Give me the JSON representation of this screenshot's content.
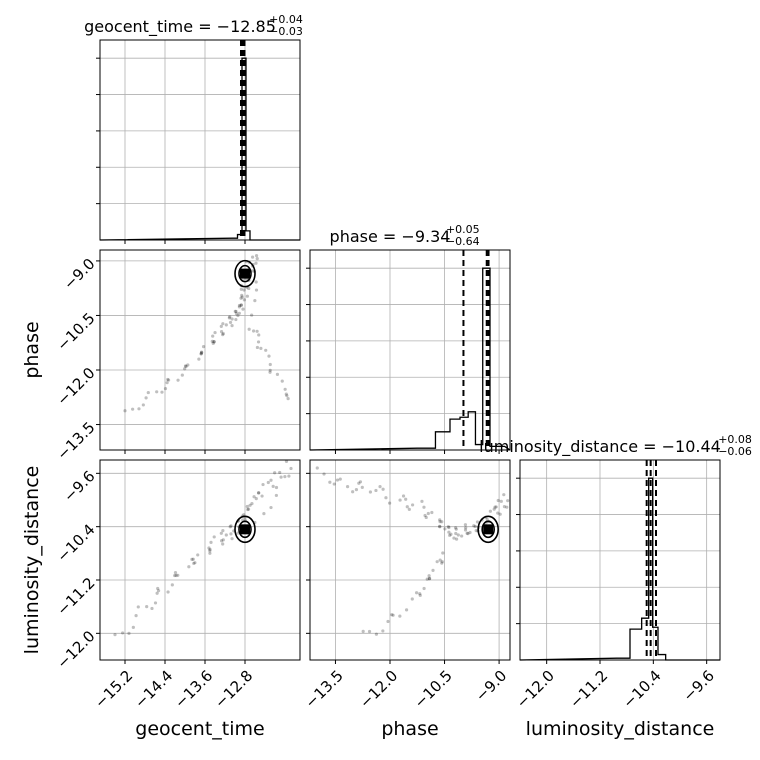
{
  "chart_data": {
    "type": "corner",
    "parameters": [
      {
        "name": "geocent_time",
        "ticks": [
          -15.2,
          -14.4,
          -13.6,
          -12.8
        ],
        "tick_labels": [
          "−15.2",
          "−14.4",
          "−13.6",
          "−12.8"
        ],
        "range": [
          -15.7,
          -11.7
        ],
        "median": -12.85,
        "lower": -12.88,
        "upper": -12.81,
        "hist_mode": -12.78
      },
      {
        "name": "phase",
        "ticks": [
          -13.5,
          -12.0,
          -10.5,
          -9.0
        ],
        "tick_labels": [
          "−13.5",
          "−12.0",
          "−10.5",
          "−9.0"
        ],
        "range": [
          -14.2,
          -8.7
        ],
        "median": -9.34,
        "lower": -9.98,
        "upper": -9.29,
        "hist_mode": -9.3
      },
      {
        "name": "luminosity_distance",
        "ticks": [
          -12.0,
          -11.2,
          -10.4,
          -9.6
        ],
        "tick_labels": [
          "−12.0",
          "−11.2",
          "−10.4",
          "−9.6"
        ],
        "range": [
          -12.4,
          -9.4
        ],
        "median": -10.44,
        "lower": -10.5,
        "upper": -10.36,
        "hist_mode": -10.44
      }
    ],
    "titles": [
      {
        "main": "geocent_time = −12.85",
        "sup": "+0.04",
        "sub": "−0.03"
      },
      {
        "main": "phase = −9.34",
        "sup": "+0.05",
        "sub": "−0.64"
      },
      {
        "main": "luminosity_distance = −10.44",
        "sup": "+0.08",
        "sub": "−0.06"
      }
    ],
    "histograms": [
      {
        "param": "geocent_time",
        "bin_centers": [
          -13.0,
          -12.9,
          -12.82,
          -12.74,
          -12.66
        ],
        "counts": [
          0.01,
          0.03,
          1.0,
          0.05,
          0.0
        ],
        "ymax": 1.1
      },
      {
        "param": "phase",
        "bin_centers": [
          -11.0,
          -10.5,
          -10.2,
          -9.95,
          -9.75,
          -9.55,
          -9.35,
          -9.15,
          -8.95
        ],
        "counts": [
          0.01,
          0.1,
          0.17,
          0.18,
          0.21,
          0.03,
          1.0,
          0.02,
          0.02
        ],
        "ymax": 1.1
      },
      {
        "param": "luminosity_distance",
        "bin_centers": [
          -10.85,
          -10.65,
          -10.5,
          -10.44,
          -10.38,
          -10.28,
          -10.15
        ],
        "counts": [
          0.01,
          0.17,
          0.23,
          1.0,
          0.18,
          0.03,
          0.0
        ],
        "ymax": 1.1
      }
    ],
    "scatter": [
      {
        "x": "geocent_time",
        "y": "phase",
        "points": [
          [
            -15.2,
            -13.2
          ],
          [
            -14.6,
            -12.6
          ],
          [
            -14.2,
            -12.2
          ],
          [
            -13.8,
            -11.7
          ],
          [
            -13.5,
            -11.3
          ],
          [
            -13.3,
            -11.0
          ],
          [
            -13.1,
            -10.7
          ],
          [
            -12.95,
            -10.5
          ],
          [
            -12.85,
            -10.3
          ],
          [
            -12.8,
            -10.0
          ],
          [
            -12.8,
            -9.7
          ],
          [
            -12.8,
            -9.4
          ],
          [
            -12.7,
            -9.1
          ],
          [
            -12.6,
            -8.9
          ],
          [
            -12.7,
            -10.8
          ],
          [
            -12.5,
            -11.4
          ],
          [
            -12.2,
            -12.2
          ],
          [
            -11.8,
            -13.0
          ]
        ],
        "center": [
          -12.8,
          -9.35
        ]
      },
      {
        "x": "geocent_time",
        "y": "luminosity_distance",
        "points": [
          [
            -15.4,
            -12.1
          ],
          [
            -14.8,
            -11.6
          ],
          [
            -14.4,
            -11.3
          ],
          [
            -14.0,
            -11.0
          ],
          [
            -13.6,
            -10.8
          ],
          [
            -13.3,
            -10.6
          ],
          [
            -13.1,
            -10.5
          ],
          [
            -12.9,
            -10.4
          ],
          [
            -12.8,
            -10.3
          ],
          [
            -12.7,
            -10.1
          ],
          [
            -12.5,
            -9.9
          ],
          [
            -12.2,
            -9.7
          ],
          [
            -11.9,
            -9.5
          ],
          [
            -12.8,
            -10.6
          ]
        ],
        "center": [
          -12.8,
          -10.44
        ]
      },
      {
        "x": "phase",
        "y": "luminosity_distance",
        "points": [
          [
            -14.0,
            -9.6
          ],
          [
            -13.2,
            -9.8
          ],
          [
            -12.6,
            -9.8
          ],
          [
            -11.8,
            -10.0
          ],
          [
            -11.2,
            -10.1
          ],
          [
            -10.7,
            -10.3
          ],
          [
            -10.4,
            -10.45
          ],
          [
            -10.2,
            -10.5
          ],
          [
            -9.9,
            -10.45
          ],
          [
            -9.6,
            -10.4
          ],
          [
            -9.3,
            -10.3
          ],
          [
            -9.0,
            -10.1
          ],
          [
            -8.8,
            -10.0
          ],
          [
            -10.5,
            -10.8
          ],
          [
            -10.9,
            -11.1
          ],
          [
            -11.2,
            -11.4
          ],
          [
            -12.0,
            -11.8
          ],
          [
            -12.8,
            -12.1
          ]
        ],
        "center": [
          -9.3,
          -10.44
        ]
      }
    ]
  }
}
